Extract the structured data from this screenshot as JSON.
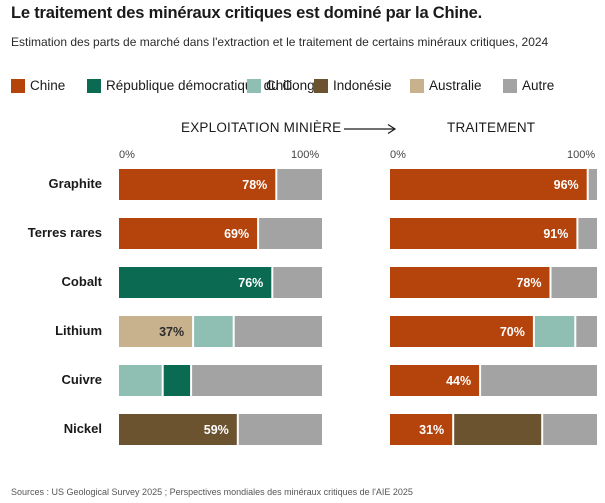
{
  "title": "Le traitement des minéraux critiques est dominé par la Chine.",
  "subtitle": "Estimation des parts de marché dans l'extraction et le traitement de certains minéraux critiques, 2024",
  "sources": "Sources :  US Geological Survey 2025 ; Perspectives mondiales des minéraux critiques de l'AIE 2025",
  "legend": [
    {
      "label": "Chine",
      "color": "#b5440c"
    },
    {
      "label": "République démocratique du Congo",
      "color": "#0b6b52"
    },
    {
      "label": "Chili",
      "color": "#8fbfb2"
    },
    {
      "label": "Indonésie",
      "color": "#6b5330"
    },
    {
      "label": "Australie",
      "color": "#c7b28d"
    },
    {
      "label": "Autre",
      "color": "#a3a3a3"
    }
  ],
  "panels": {
    "left_title": "EXPLOITATION MINIÈRE",
    "right_title": "TRAITEMENT",
    "tick_min": "0%",
    "tick_max": "100%"
  },
  "chart_data": [
    {
      "type": "bar",
      "orientation": "horizontal",
      "stacked": true,
      "title": "EXPLOITATION MINIÈRE",
      "categories": [
        "Graphite",
        "Terres rares",
        "Cobalt",
        "Lithium",
        "Cuivre",
        "Nickel"
      ],
      "xlim": [
        0,
        100
      ],
      "series": [
        {
          "name": "Chine",
          "color": "#b5440c",
          "values": [
            78,
            69,
            0,
            0,
            0,
            0
          ],
          "labels": [
            "78%",
            "69%",
            "",
            "",
            "",
            ""
          ]
        },
        {
          "name": "République démocratique du Congo",
          "color": "#0b6b52",
          "values": [
            0,
            0,
            76,
            0,
            14,
            0
          ],
          "labels": [
            "",
            "",
            "76%",
            "",
            "",
            ""
          ]
        },
        {
          "name": "Chili",
          "color": "#8fbfb2",
          "values": [
            0,
            0,
            0,
            20,
            22,
            0
          ],
          "labels": [
            "",
            "",
            "",
            "",
            "",
            ""
          ]
        },
        {
          "name": "Indonésie",
          "color": "#6b5330",
          "values": [
            0,
            0,
            0,
            0,
            0,
            59
          ],
          "labels": [
            "",
            "",
            "",
            "",
            "",
            "59%"
          ]
        },
        {
          "name": "Australie",
          "color": "#c7b28d",
          "values": [
            0,
            0,
            0,
            37,
            0,
            0
          ],
          "labels": [
            "",
            "",
            "",
            "37%",
            "",
            ""
          ]
        },
        {
          "name": "Autre",
          "color": "#a3a3a3",
          "values": [
            22,
            31,
            24,
            43,
            64,
            41
          ],
          "labels": [
            "",
            "",
            "",
            "",
            "",
            ""
          ]
        }
      ],
      "segment_order": [
        [
          "Chine",
          "Autre"
        ],
        [
          "Chine",
          "Autre"
        ],
        [
          "République démocratique du Congo",
          "Autre"
        ],
        [
          "Australie",
          "Chili",
          "Autre"
        ],
        [
          "Chili",
          "République démocratique du Congo",
          "Autre"
        ],
        [
          "Indonésie",
          "Autre"
        ]
      ]
    },
    {
      "type": "bar",
      "orientation": "horizontal",
      "stacked": true,
      "title": "TRAITEMENT",
      "categories": [
        "Graphite",
        "Terres rares",
        "Cobalt",
        "Lithium",
        "Cuivre",
        "Nickel"
      ],
      "xlim": [
        0,
        100
      ],
      "series": [
        {
          "name": "Chine",
          "color": "#b5440c",
          "values": [
            96,
            91,
            78,
            70,
            44,
            31
          ],
          "labels": [
            "96%",
            "91%",
            "78%",
            "70%",
            "44%",
            "31%"
          ]
        },
        {
          "name": "Chili",
          "color": "#8fbfb2",
          "values": [
            0,
            0,
            0,
            20,
            0,
            0
          ],
          "labels": [
            "",
            "",
            "",
            "",
            "",
            ""
          ]
        },
        {
          "name": "Indonésie",
          "color": "#6b5330",
          "values": [
            0,
            0,
            0,
            0,
            0,
            43
          ],
          "labels": [
            "",
            "",
            "",
            "",
            "",
            ""
          ]
        },
        {
          "name": "Autre",
          "color": "#a3a3a3",
          "values": [
            4,
            9,
            22,
            10,
            56,
            26
          ],
          "labels": [
            "",
            "",
            "",
            "",
            "",
            ""
          ]
        }
      ],
      "segment_order": [
        [
          "Chine",
          "Autre"
        ],
        [
          "Chine",
          "Autre"
        ],
        [
          "Chine",
          "Autre"
        ],
        [
          "Chine",
          "Chili",
          "Autre"
        ],
        [
          "Chine",
          "Autre"
        ],
        [
          "Chine",
          "Indonésie",
          "Autre"
        ]
      ]
    }
  ]
}
